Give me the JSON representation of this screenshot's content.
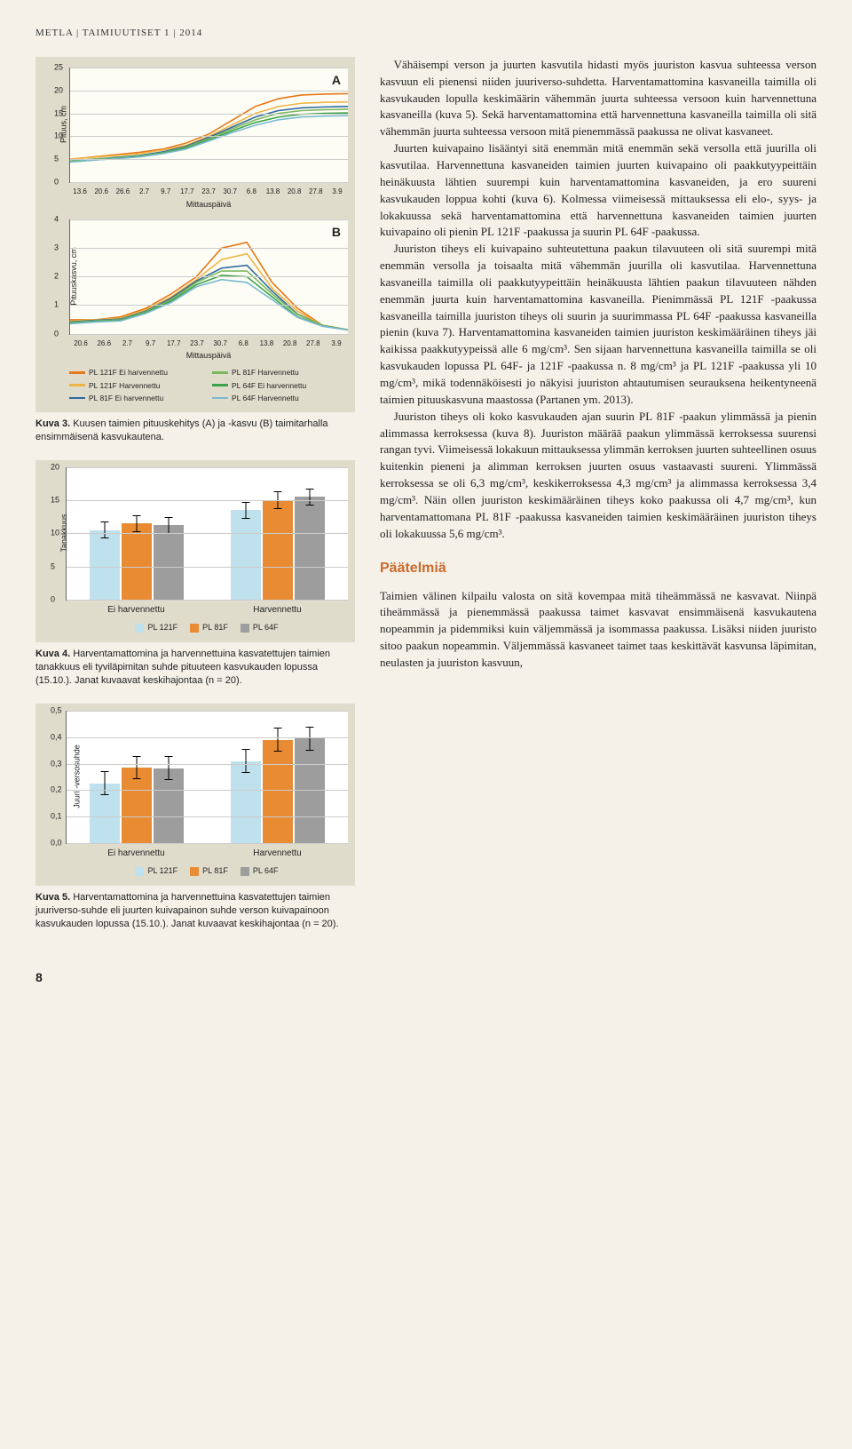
{
  "header": "METLA | TAIMIUUTISET 1 | 2014",
  "page_number": "8",
  "line_colors": {
    "pl121f_ei": "#e67817",
    "pl121f_h": "#f0b445",
    "pl81f_ei": "#2f6aa0",
    "pl81f_h": "#7db85e",
    "pl64f_ei": "#3da24a",
    "pl64f_h": "#7bbad1"
  },
  "fig3": {
    "panelA": {
      "letter": "A",
      "ylabel": "Pituus, cm",
      "ylim": [
        0,
        25
      ],
      "yticks": [
        0,
        5,
        10,
        15,
        20,
        25
      ],
      "xticks": [
        "13.6",
        "20.6",
        "26.6",
        "2.7",
        "9.7",
        "17.7",
        "23.7",
        "30.7",
        "6.8",
        "13.8",
        "20.8",
        "27.8",
        "3.9"
      ],
      "xlabel": "Mittauspäivä",
      "series": {
        "pl121f_ei": [
          5,
          5.5,
          6,
          6.5,
          7.2,
          8.5,
          10.5,
          13.5,
          16.5,
          18.2,
          19,
          19.2,
          19.3
        ],
        "pl121f_h": [
          5,
          5.4,
          5.8,
          6.2,
          7,
          8,
          10,
          12.5,
          15,
          16.5,
          17.2,
          17.4,
          17.5
        ],
        "pl81f_ei": [
          4.6,
          5,
          5.4,
          5.8,
          6.6,
          7.8,
          9.8,
          12,
          14.2,
          15.6,
          16.2,
          16.4,
          16.5
        ],
        "pl81f_h": [
          4.6,
          5,
          5.3,
          5.7,
          6.4,
          7.6,
          9.5,
          11.6,
          13.6,
          15,
          15.6,
          15.8,
          15.9
        ],
        "pl64f_ei": [
          4.4,
          4.8,
          5.2,
          5.6,
          6.3,
          7.4,
          9.2,
          11.2,
          13,
          14.2,
          14.8,
          15,
          15.1
        ],
        "pl64f_h": [
          4.4,
          4.8,
          5.1,
          5.5,
          6.2,
          7.2,
          9,
          10.8,
          12.4,
          13.6,
          14.2,
          14.4,
          14.5
        ]
      }
    },
    "panelB": {
      "letter": "B",
      "ylabel": "Pituuskasvu, cm",
      "ylim": [
        0,
        4
      ],
      "yticks": [
        0,
        1,
        2,
        3,
        4
      ],
      "xticks": [
        "20.6",
        "26.6",
        "2.7",
        "9.7",
        "17.7",
        "23.7",
        "30.7",
        "6.8",
        "13.8",
        "20.8",
        "27.8",
        "3.9"
      ],
      "xlabel": "Mittauspäivä",
      "series": {
        "pl121f_ei": [
          0.5,
          0.5,
          0.6,
          0.9,
          1.4,
          2.0,
          3.0,
          3.2,
          1.8,
          0.9,
          0.3,
          0.15
        ],
        "pl121f_h": [
          0.45,
          0.5,
          0.55,
          0.85,
          1.3,
          1.9,
          2.6,
          2.8,
          1.6,
          0.8,
          0.3,
          0.15
        ],
        "pl81f_ei": [
          0.42,
          0.48,
          0.52,
          0.8,
          1.25,
          1.85,
          2.3,
          2.4,
          1.5,
          0.7,
          0.3,
          0.15
        ],
        "pl81f_h": [
          0.4,
          0.46,
          0.5,
          0.78,
          1.2,
          1.8,
          2.2,
          2.2,
          1.4,
          0.68,
          0.3,
          0.15
        ],
        "pl64f_ei": [
          0.38,
          0.44,
          0.48,
          0.75,
          1.15,
          1.72,
          2.05,
          2.0,
          1.3,
          0.6,
          0.28,
          0.14
        ],
        "pl64f_h": [
          0.36,
          0.42,
          0.46,
          0.72,
          1.1,
          1.65,
          1.9,
          1.8,
          1.2,
          0.58,
          0.27,
          0.14
        ]
      }
    },
    "legend": [
      {
        "key": "pl121f_ei",
        "label": "PL 121F Ei harvennettu"
      },
      {
        "key": "pl81f_h",
        "label": "PL 81F Harvennettu"
      },
      {
        "key": "pl121f_h",
        "label": "PL 121F Harvennettu"
      },
      {
        "key": "pl64f_ei",
        "label": "PL 64F Ei harvennettu"
      },
      {
        "key": "pl81f_ei",
        "label": "PL 81F Ei harvennettu"
      },
      {
        "key": "pl64f_h",
        "label": "PL 64F Harvennettu"
      }
    ],
    "caption_b": "Kuva 3.",
    "caption": " Kuusen taimien pituuskehitys (A) ja -kasvu (B) taimitarhalla ensimmäisenä kasvukautena."
  },
  "bar_colors": {
    "PL121F": "#bfe0ed",
    "PL81F": "#e98b33",
    "PL64F": "#9d9d9d"
  },
  "fig4": {
    "ylabel": "Tanakkuus",
    "ylim": [
      0,
      20
    ],
    "yticks": [
      0,
      5,
      10,
      15,
      20
    ],
    "groups": [
      "Ei harvennettu",
      "Harvennettu"
    ],
    "legend": [
      "PL 121F",
      "PL 81F",
      "PL 64F"
    ],
    "data": {
      "Ei harvennettu": {
        "PL121F": 10.5,
        "PL81F": 11.5,
        "PL64F": 11.2
      },
      "Harvennettu": {
        "PL121F": 13.5,
        "PL81F": 15.0,
        "PL64F": 15.5
      }
    },
    "err": 1.3,
    "caption_b": "Kuva 4.",
    "caption": " Harventamattomina ja harvennettuina kasvatettujen taimien tanakkuus eli tyviläpimitan suhde pituuteen kasvukauden lopussa (15.10.). Janat kuvaavat keskihajontaa (n = 20)."
  },
  "fig5": {
    "ylabel": "Juuri -versosuhde",
    "ylim": [
      0,
      0.5
    ],
    "yticks": [
      "0,0",
      "0,1",
      "0,2",
      "0,3",
      "0,4",
      "0,5"
    ],
    "groups": [
      "Ei harvennettu",
      "Harvennettu"
    ],
    "legend": [
      "PL 121F",
      "PL 81F",
      "PL 64F"
    ],
    "data": {
      "Ei harvennettu": {
        "PL121F": 0.225,
        "PL81F": 0.285,
        "PL64F": 0.282
      },
      "Harvennettu": {
        "PL121F": 0.31,
        "PL81F": 0.39,
        "PL64F": 0.395
      }
    },
    "err": 0.045,
    "caption_b": "Kuva 5.",
    "caption": " Harventamattomina ja harvennettuina kasvatettujen taimien juuriverso-suhde eli juurten kuivapainon suhde verson kuivapainoon kasvukauden lopussa (15.10.). Janat kuvaavat keskihajontaa (n = 20)."
  },
  "body": {
    "p1": "Vähäisempi verson ja juurten kasvutila hidasti myös juuriston kasvua suhteessa verson kasvuun eli pienensi niiden juuriverso-suhdetta. Harventamattomina kasvaneilla taimilla oli kasvukauden lopulla keskimäärin vähemmän juurta suhteessa versoon kuin harvennettuna kasvaneilla (kuva 5). Sekä harventamattomina että harvennettuna kasvaneilla taimilla oli sitä vähemmän juurta suhteessa versoon mitä pienemmässä paakussa ne olivat kasvaneet.",
    "p2": "Juurten kuivapaino lisääntyi sitä enemmän mitä enemmän sekä versolla että juurilla oli kasvutilaa. Harvennettuna kasvaneiden taimien juurten kuivapaino oli paakkutyypeittäin heinäkuusta lähtien suurempi kuin harventamattomina kasvaneiden, ja ero suureni kasvukauden loppua kohti (kuva 6). Kolmessa viimeisessä mittauksessa eli elo-, syys- ja lokakuussa sekä harventamattomina että harvennettuna kasvaneiden taimien juurten kuivapaino oli pienin PL 121F -paakussa ja suurin PL 64F -paakussa.",
    "p3": "Juuriston tiheys eli kuivapaino suhteutettuna paakun tilavuuteen oli sitä suurempi mitä enemmän versolla ja toisaalta mitä vähemmän juurilla oli kasvutilaa. Harvennettuna kasvaneilla taimilla oli paakkutyypeittäin heinäkuusta lähtien paakun tilavuuteen nähden enemmän juurta kuin harventamattomina kasvaneilla. Pienimmässä PL 121F -paakussa kasvaneilla taimilla juuriston tiheys oli suurin ja suurimmassa PL 64F -paakussa kasvaneilla pienin (kuva 7). Harventamattomina kasvaneiden taimien juuriston keskimääräinen tiheys jäi kaikissa paakkutyypeissä alle 6 mg/cm³. Sen sijaan harvennettuna kasvaneilla taimilla se oli kasvukauden lopussa PL 64F- ja 121F -paakussa n. 8 mg/cm³ ja PL 121F -paakussa yli 10 mg/cm³, mikä todennäköisesti jo näkyisi juuriston ahtautumisen seurauksena heikentyneenä taimien pituuskasvuna maastossa (Partanen ym. 2013).",
    "p4": "Juuriston tiheys oli koko kasvukauden ajan suurin PL 81F -paakun ylimmässä ja pienin alimmassa kerroksessa (kuva 8). Juuriston määrää paakun ylimmässä kerroksessa suurensi rangan tyvi. Viimeisessä lokakuun mittauksessa ylimmän kerroksen juurten suhteellinen osuus kuitenkin pieneni ja alimman kerroksen juurten osuus vastaavasti suureni. Ylimmässä kerroksessa se oli 6,3 mg/cm³, keskikerroksessa 4,3 mg/cm³ ja alimmassa kerroksessa 3,4 mg/cm³. Näin ollen juuriston keskimääräinen tiheys koko paakussa oli 4,7 mg/cm³, kun harventamattomana PL 81F -paakussa kasvaneiden taimien keskimääräinen juuriston tiheys oli lokakuussa 5,6 mg/cm³.",
    "h3": "Päätelmiä",
    "p5": "Taimien välinen kilpailu valosta on sitä kovempaa mitä tiheämmässä ne kasvavat. Niinpä tiheämmässä ja pienemmässä paakussa taimet kasvavat ensimmäisenä kasvukautena nopeammin ja pidemmiksi kuin väljemmässä ja isommassa paakussa. Lisäksi niiden juuristo sitoo paakun nopeammin. Väljemmässä kasvaneet taimet taas keskittävät kasvunsa läpimitan, neulasten ja juuriston kasvuun,"
  }
}
